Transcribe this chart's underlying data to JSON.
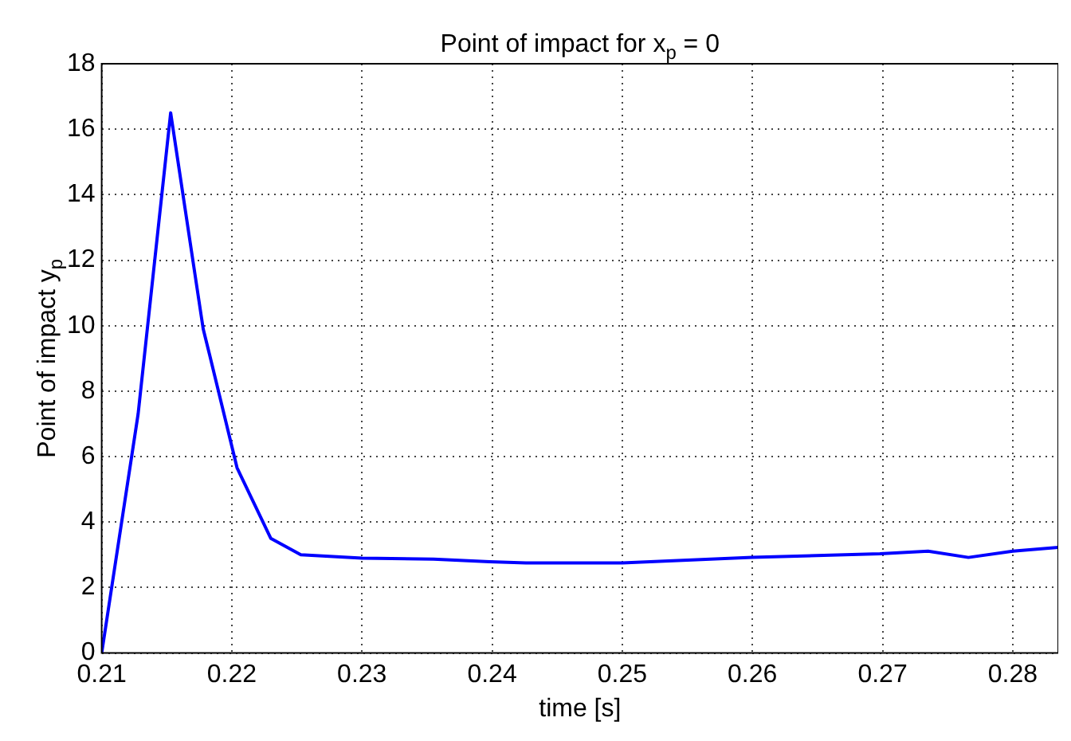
{
  "chart_data": {
    "type": "line",
    "title": "Point of impact for x$_{p}$ = 0",
    "xlabel": "time [s]",
    "ylabel": "Point of impact y$_{p}$",
    "series": [
      {
        "color": "#0000ff",
        "x": [
          0.21,
          0.2128,
          0.2153,
          0.2178,
          0.2183,
          0.2204,
          0.223,
          0.2253,
          0.23,
          0.2355,
          0.2398,
          0.2426,
          0.25,
          0.26,
          0.2698,
          0.2735,
          0.2766,
          0.28,
          0.2835
        ],
        "values": [
          0,
          7.3,
          16.5,
          9.9,
          9.1,
          5.66,
          3.5,
          3.0,
          2.9,
          2.87,
          2.79,
          2.75,
          2.75,
          2.92,
          3.03,
          3.11,
          2.92,
          3.11,
          3.23
        ]
      }
    ],
    "xlim": [
      0.21,
      0.2835
    ],
    "xticks": [
      0.21,
      0.22,
      0.23,
      0.24,
      0.25,
      0.26,
      0.27,
      0.28
    ],
    "ylim": [
      0,
      18
    ],
    "yticks": [
      0,
      2,
      4,
      6,
      8,
      10,
      12,
      14,
      16,
      18
    ],
    "grid": true,
    "legend": false,
    "marker": "none",
    "line_style": "solid"
  }
}
